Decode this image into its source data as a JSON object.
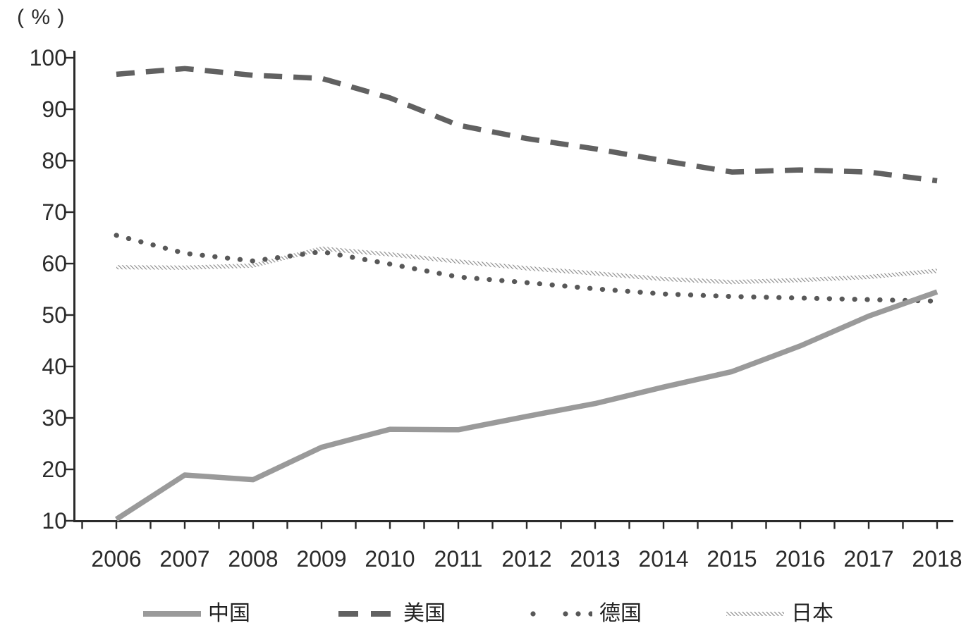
{
  "chart_data": {
    "type": "line",
    "title": "",
    "ylabel": "( % )",
    "xlabel": "",
    "grid": false,
    "legend_position": "bottom",
    "ylim": [
      10,
      100
    ],
    "yticks": [
      10,
      20,
      30,
      40,
      50,
      60,
      70,
      80,
      90,
      100
    ],
    "categories": [
      "2006",
      "2007",
      "2008",
      "2009",
      "2010",
      "2011",
      "2012",
      "2013",
      "2014",
      "2015",
      "2016",
      "2017",
      "2018"
    ],
    "series": [
      {
        "key": "china",
        "name": "中国",
        "style": "solid",
        "color": "#9a9a9a",
        "values": [
          10.3,
          18.9,
          18.0,
          24.3,
          27.8,
          27.7,
          30.3,
          32.8,
          36.0,
          39.0,
          44.0,
          49.8,
          54.5
        ]
      },
      {
        "key": "usa",
        "name": "美国",
        "style": "dashed",
        "color": "#616161",
        "values": [
          96.8,
          97.9,
          96.6,
          96.0,
          92.2,
          86.9,
          84.3,
          82.3,
          80.0,
          77.8,
          78.2,
          77.8,
          76.1
        ]
      },
      {
        "key": "germany",
        "name": "德国",
        "style": "dotted",
        "color": "#585858",
        "values": [
          65.5,
          62.0,
          60.5,
          62.3,
          59.9,
          57.4,
          56.3,
          55.1,
          54.1,
          53.6,
          53.3,
          53.0,
          52.7
        ]
      },
      {
        "key": "japan",
        "name": "日本",
        "style": "hatched",
        "color": "#a8a8a8",
        "values": [
          59.3,
          59.2,
          59.6,
          62.9,
          61.8,
          60.4,
          59.1,
          58.1,
          57.0,
          56.4,
          56.8,
          57.4,
          58.6
        ]
      }
    ],
    "axis_color": "#2a2a2a",
    "tick_label_color": "#2b2b2b"
  }
}
